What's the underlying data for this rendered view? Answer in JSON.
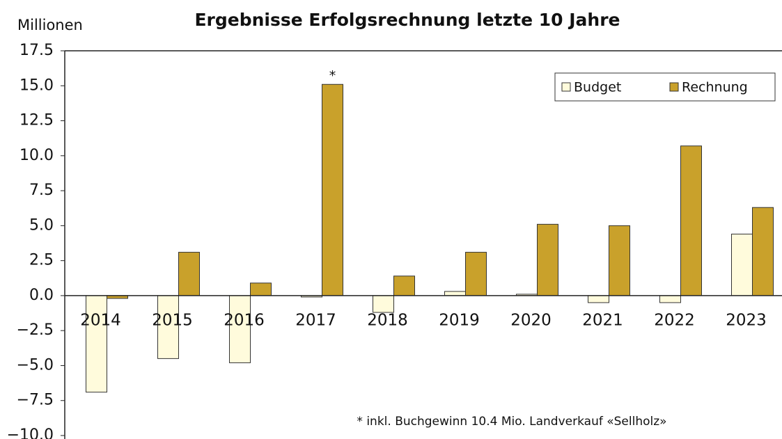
{
  "chart_data": {
    "type": "bar",
    "title": "Ergebnisse Erfolgsrechnung letzte 10 Jahre",
    "y_label": "Millionen",
    "categories": [
      "2014",
      "2015",
      "2016",
      "2017",
      "2018",
      "2019",
      "2020",
      "2021",
      "2022",
      "2023"
    ],
    "series": [
      {
        "name": "Budget",
        "color": "#fffbdc",
        "values": [
          -6.9,
          -4.5,
          -4.8,
          -0.1,
          -1.2,
          0.3,
          0.1,
          -0.5,
          -0.5,
          4.4
        ]
      },
      {
        "name": "Rechnung",
        "color": "#c9a12b",
        "values": [
          -0.2,
          3.1,
          0.9,
          15.1,
          1.4,
          3.1,
          5.1,
          5.0,
          10.7,
          6.3
        ]
      }
    ],
    "ylim": [
      -10,
      17.5
    ],
    "yticks": [
      {
        "value": -10,
        "label": "−10.0"
      },
      {
        "value": -7.5,
        "label": "−7.5"
      },
      {
        "value": -5,
        "label": "−5.0"
      },
      {
        "value": -2.5,
        "label": "−2.5"
      },
      {
        "value": 0,
        "label": "0.0"
      },
      2.5,
      {
        "value": 5,
        "label": "5.0"
      },
      7.5,
      {
        "value": 10,
        "label": "10.0"
      },
      12.5,
      {
        "value": 15,
        "label": "15.0"
      },
      17.5
    ],
    "annotations": [
      "*",
      "* inkl. Buchgewinn 10.4 Mio. Landverkauf «Sellholz»"
    ],
    "legend": "upper right",
    "grid": false
  }
}
